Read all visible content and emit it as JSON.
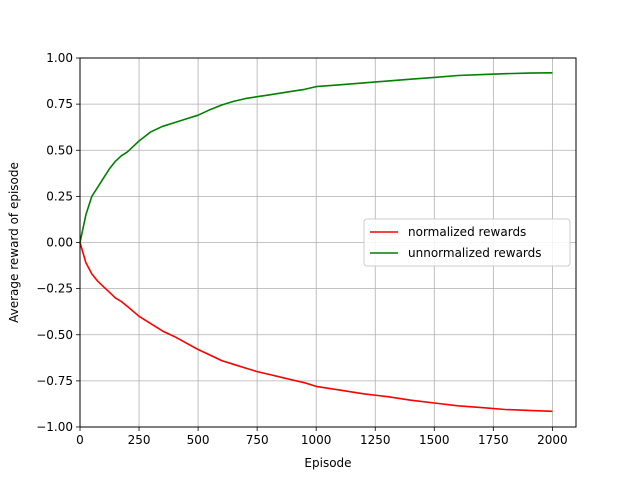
{
  "chart_data": {
    "type": "line",
    "title": "",
    "xlabel": "Episode",
    "ylabel": "Average reward of episode",
    "xlim": [
      0,
      2100
    ],
    "ylim": [
      -1.0,
      1.0
    ],
    "xticks": [
      0,
      250,
      500,
      750,
      1000,
      1250,
      1500,
      1750,
      2000
    ],
    "xtick_labels": [
      "0",
      "250",
      "500",
      "750",
      "1000",
      "1250",
      "1500",
      "1750",
      "2000"
    ],
    "yticks": [
      1.0,
      0.75,
      0.5,
      0.25,
      0.0,
      -0.25,
      -0.5,
      -0.75,
      -1.0
    ],
    "ytick_labels": [
      "1.00",
      "0.75",
      "0.50",
      "0.25",
      "0.00",
      "−0.25",
      "−0.50",
      "−0.75",
      "−1.00"
    ],
    "grid": true,
    "legend_position": "center-right",
    "series": [
      {
        "name": "normalized rewards",
        "color": "#ff0000",
        "x": [
          0,
          25,
          50,
          75,
          100,
          125,
          150,
          175,
          200,
          250,
          300,
          350,
          400,
          450,
          500,
          550,
          600,
          650,
          700,
          750,
          800,
          850,
          900,
          950,
          1000,
          1100,
          1200,
          1300,
          1400,
          1500,
          1600,
          1700,
          1800,
          1900,
          2000
        ],
        "y": [
          0.0,
          -0.11,
          -0.17,
          -0.21,
          -0.24,
          -0.27,
          -0.3,
          -0.32,
          -0.345,
          -0.4,
          -0.44,
          -0.48,
          -0.51,
          -0.545,
          -0.58,
          -0.61,
          -0.64,
          -0.66,
          -0.68,
          -0.7,
          -0.715,
          -0.73,
          -0.745,
          -0.76,
          -0.78,
          -0.8,
          -0.82,
          -0.835,
          -0.855,
          -0.87,
          -0.885,
          -0.895,
          -0.905,
          -0.91,
          -0.915
        ]
      },
      {
        "name": "unnormalized rewards",
        "color": "#008000",
        "x": [
          0,
          25,
          50,
          75,
          100,
          125,
          150,
          175,
          200,
          250,
          300,
          350,
          400,
          450,
          500,
          550,
          600,
          650,
          700,
          750,
          800,
          850,
          900,
          950,
          1000,
          1100,
          1200,
          1300,
          1400,
          1500,
          1600,
          1700,
          1800,
          1900,
          2000
        ],
        "y": [
          0.0,
          0.15,
          0.25,
          0.3,
          0.35,
          0.4,
          0.44,
          0.47,
          0.49,
          0.55,
          0.6,
          0.63,
          0.65,
          0.67,
          0.69,
          0.72,
          0.745,
          0.765,
          0.78,
          0.79,
          0.8,
          0.81,
          0.82,
          0.83,
          0.845,
          0.855,
          0.865,
          0.875,
          0.885,
          0.895,
          0.905,
          0.91,
          0.915,
          0.918,
          0.92
        ]
      }
    ]
  }
}
